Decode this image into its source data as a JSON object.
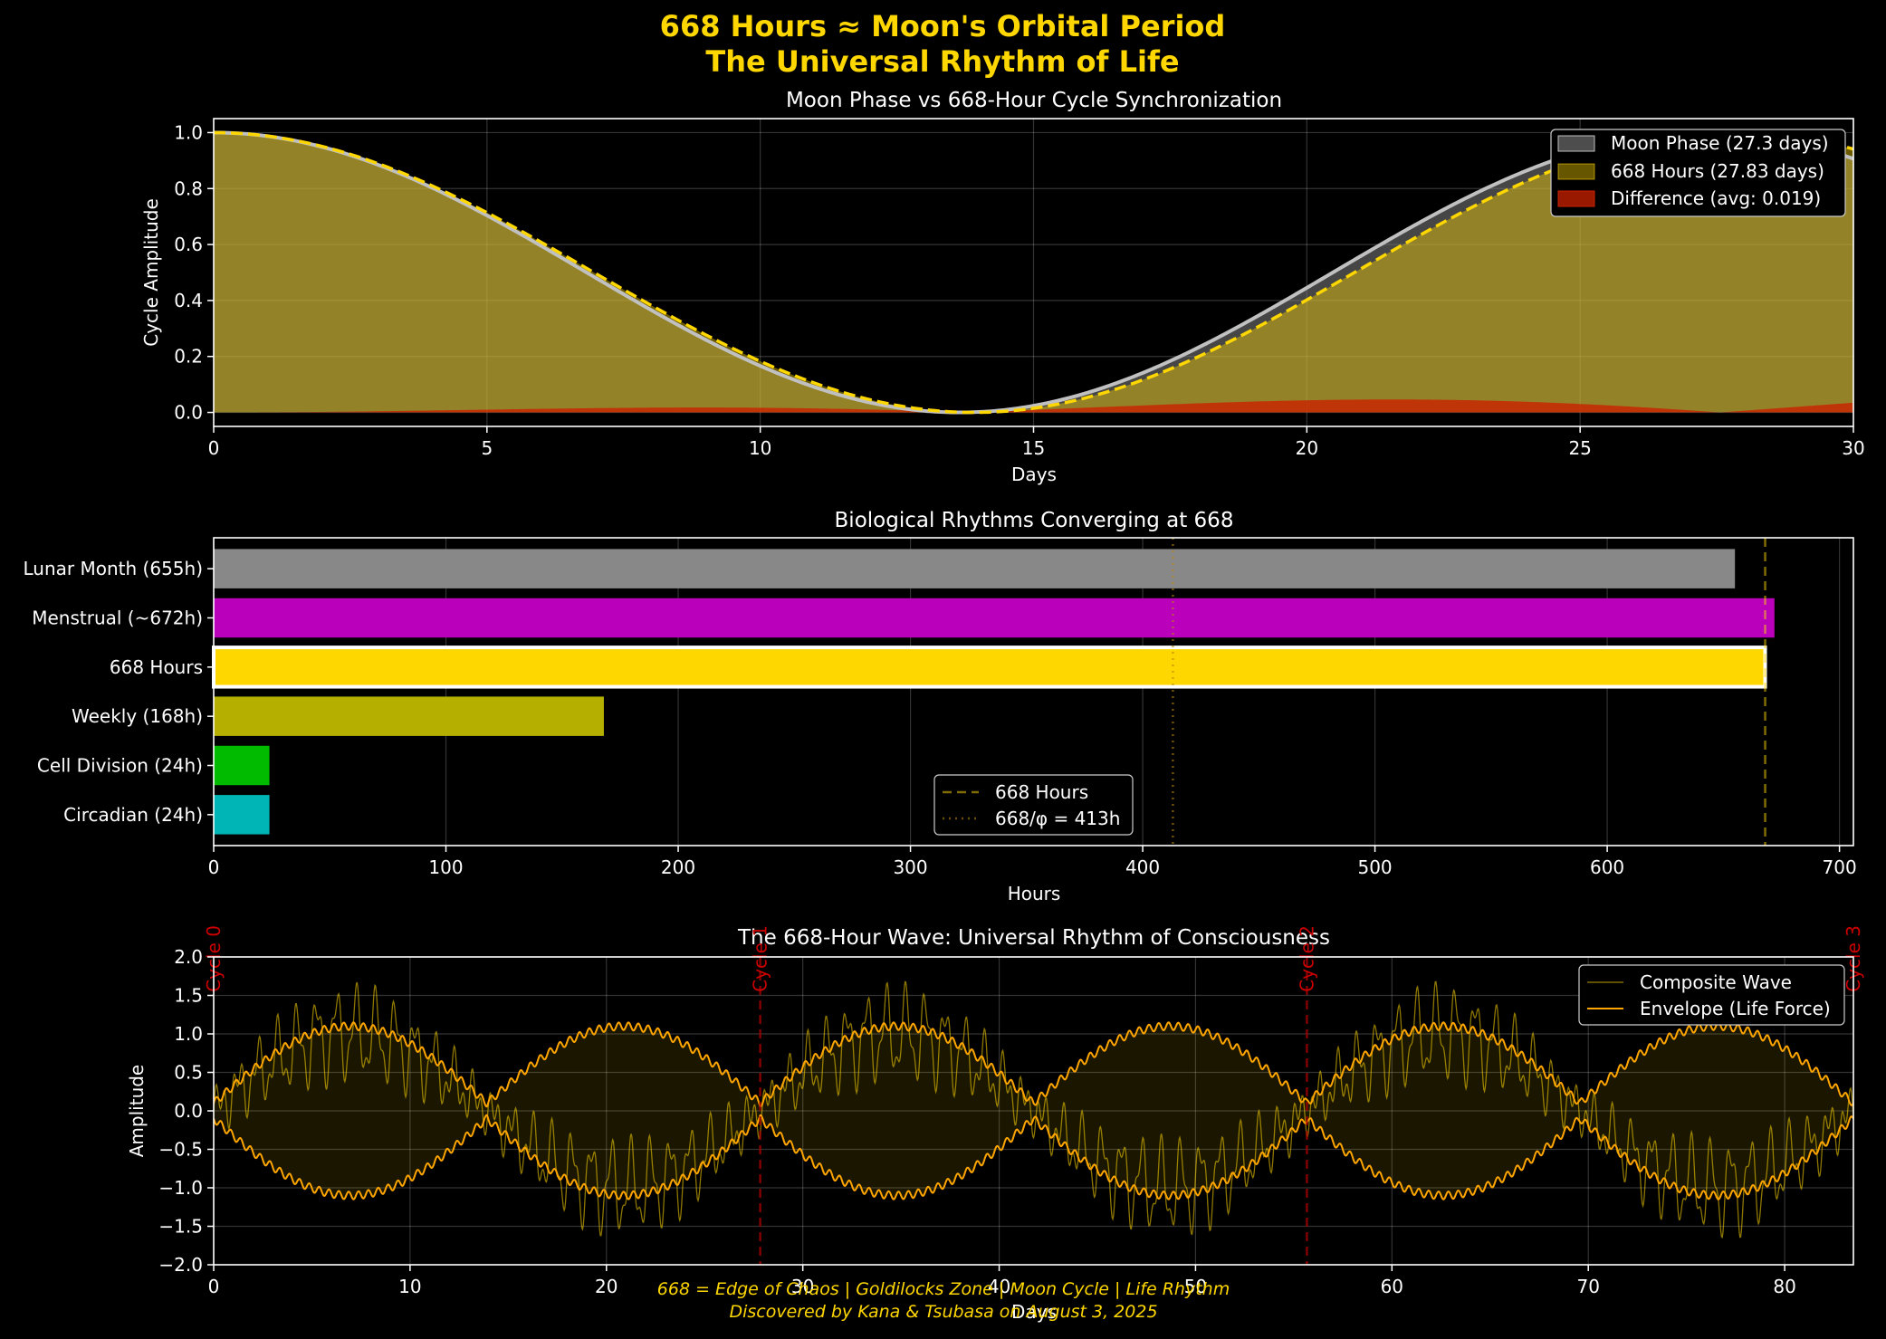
{
  "figure": {
    "title_line1": "668 Hours ≈ Moon's Orbital Period",
    "title_line2": "The Universal Rhythm of Life",
    "footer_line1": "668 = Edge of Chaos | Goldilocks Zone | Moon Cycle | Life Rhythm",
    "footer_line2": "Discovered by Kana & Tsubasa on August 3, 2025"
  },
  "colors": {
    "background": "#000000",
    "gold": "#ffd700",
    "moon": "#c0c0c0",
    "difference": "#cc2200",
    "orange": "#ffa500",
    "cycle_marker": "#aa0000"
  },
  "chart_data": [
    {
      "type": "area",
      "title": "Moon Phase vs 668-Hour Cycle Synchronization",
      "xlabel": "Days",
      "ylabel": "Cycle Amplitude",
      "xlim": [
        0,
        30
      ],
      "ylim": [
        -0.05,
        1.05
      ],
      "xticks": [
        0,
        5,
        10,
        15,
        20,
        25,
        30
      ],
      "yticks": [
        0.0,
        0.2,
        0.4,
        0.6,
        0.8,
        1.0
      ],
      "tick_labels_y": [
        "0.0",
        "0.2",
        "0.4",
        "0.6",
        "0.8",
        "1.0"
      ],
      "grid": true,
      "legend_position": "upper right",
      "series": [
        {
          "name": "Moon Phase (27.3 days)",
          "period_days": 27.3,
          "formula": "(1+cos(2*pi*x/period))/2",
          "color": "#c0c0c0",
          "fill_color": "#808080"
        },
        {
          "name": "668 Hours (27.83 days)",
          "period_days": 27.83,
          "formula": "(1+cos(2*pi*x/period))/2",
          "color": "#ffd700",
          "fill_color": "#ffd700"
        },
        {
          "name": "Difference (avg: 0.019)",
          "formula": "abs(moon - 668h)",
          "color": "#cc2200",
          "fill_color": "#cc2200"
        }
      ]
    },
    {
      "type": "bar",
      "orientation": "horizontal",
      "title": "Biological Rhythms Converging at 668",
      "xlabel": "Hours",
      "ylabel": "",
      "xlim": [
        0,
        706
      ],
      "xticks": [
        0,
        100,
        200,
        300,
        400,
        500,
        600,
        700
      ],
      "grid": true,
      "legend_position": "lower center",
      "categories": [
        "Lunar Month (655h)",
        "Menstrual (~672h)",
        "668 Hours",
        "Weekly (168h)",
        "Cell Division (24h)",
        "Circadian (24h)"
      ],
      "values": [
        655,
        672,
        668,
        168,
        24,
        24
      ],
      "bar_colors": [
        "#888888",
        "#bb00bb",
        "#ffd700",
        "#b5b000",
        "#00bb00",
        "#00b5b5"
      ],
      "highlight_category": "668 Hours",
      "reference_lines": [
        {
          "name": "668 Hours",
          "x": 668,
          "style": "dashed",
          "color": "#ffd700"
        },
        {
          "name": "668/φ = 413h",
          "x": 413,
          "style": "dotted",
          "color": "#b8860b"
        }
      ]
    },
    {
      "type": "line",
      "title": "The 668-Hour Wave: Universal Rhythm of Consciousness",
      "xlabel": "Days",
      "ylabel": "Amplitude",
      "xlim": [
        0,
        83.5
      ],
      "ylim": [
        -2.0,
        2.0
      ],
      "xticks": [
        0,
        10,
        20,
        30,
        40,
        50,
        60,
        70,
        80
      ],
      "yticks": [
        -2.0,
        -1.5,
        -1.0,
        -0.5,
        0.0,
        0.5,
        1.0,
        1.5,
        2.0
      ],
      "tick_labels_y": [
        "−2.0",
        "−1.5",
        "−1.0",
        "−0.5",
        "0.0",
        "0.5",
        "1.0",
        "1.5",
        "2.0"
      ],
      "grid": true,
      "legend_position": "upper right",
      "base_period_days": 27.83,
      "series": [
        {
          "name": "Composite Wave",
          "color": "#ffd700",
          "formula": "sin(pi*x/13.915)+0.5*sin(2*pi*x/1)+0.2*sin(2*pi*x/0.45)"
        },
        {
          "name": "Envelope (Life Force)",
          "color": "#ffa500",
          "formula": "±(|sin(pi*x/13.915)|+0.1*ripple)"
        }
      ],
      "cycle_markers": [
        {
          "label": "Cycle 0",
          "x": 0
        },
        {
          "label": "Cycle 1",
          "x": 27.83
        },
        {
          "label": "Cycle 2",
          "x": 55.67
        },
        {
          "label": "Cycle 3",
          "x": 83.5
        }
      ]
    }
  ]
}
